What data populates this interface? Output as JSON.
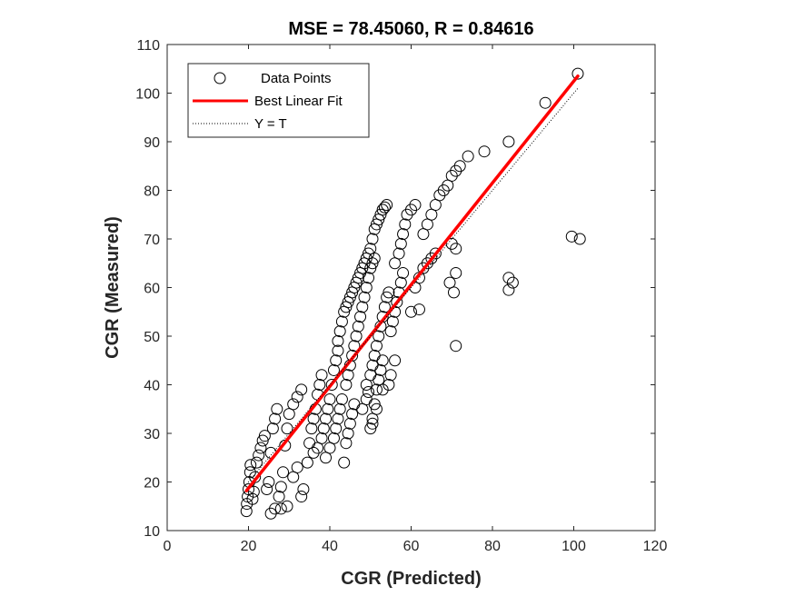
{
  "chart_data": {
    "type": "scatter",
    "title": "MSE = 78.45060, R = 0.84616",
    "xlabel": "CGR (Predicted)",
    "ylabel": "CGR (Measured)",
    "xlim": [
      0,
      120
    ],
    "ylim": [
      10,
      110
    ],
    "xticks": [
      0,
      20,
      40,
      60,
      80,
      100,
      120
    ],
    "yticks": [
      10,
      20,
      30,
      40,
      50,
      60,
      70,
      80,
      90,
      100,
      110
    ],
    "grid": false,
    "legend_position": "top-left",
    "colors": {
      "points": "#000000",
      "fit": "#ff0000",
      "identity": "#000000",
      "frame": "#262626"
    },
    "series": [
      {
        "name": "Data Points",
        "kind": "scatter",
        "marker": "open-circle",
        "points": [
          [
            19.5,
            14
          ],
          [
            19.6,
            15.5
          ],
          [
            19.8,
            17
          ],
          [
            20,
            18.5
          ],
          [
            20.2,
            20
          ],
          [
            20.4,
            22
          ],
          [
            20.5,
            23.5
          ],
          [
            21,
            16.5
          ],
          [
            21.3,
            18
          ],
          [
            21.6,
            21
          ],
          [
            22,
            24
          ],
          [
            22.5,
            25.5
          ],
          [
            23,
            27
          ],
          [
            23.5,
            28.5
          ],
          [
            24,
            29.5
          ],
          [
            24.5,
            18.5
          ],
          [
            25,
            20
          ],
          [
            25.5,
            26
          ],
          [
            26,
            31
          ],
          [
            26.5,
            33
          ],
          [
            27,
            35
          ],
          [
            25.5,
            13.5
          ],
          [
            26.5,
            14.5
          ],
          [
            27.5,
            17
          ],
          [
            28,
            19
          ],
          [
            28.5,
            22
          ],
          [
            29,
            27.5
          ],
          [
            29.5,
            31
          ],
          [
            30,
            34
          ],
          [
            31,
            36
          ],
          [
            32,
            37.5
          ],
          [
            33,
            39
          ],
          [
            28,
            14.5
          ],
          [
            29.5,
            15
          ],
          [
            31,
            21
          ],
          [
            32,
            23
          ],
          [
            33,
            17
          ],
          [
            33.5,
            18.5
          ],
          [
            34.5,
            24
          ],
          [
            35,
            28
          ],
          [
            35.5,
            31
          ],
          [
            36,
            33
          ],
          [
            36.5,
            35
          ],
          [
            37,
            38
          ],
          [
            37.5,
            40
          ],
          [
            38,
            42
          ],
          [
            36,
            26
          ],
          [
            37,
            27
          ],
          [
            38,
            29
          ],
          [
            38.5,
            31
          ],
          [
            39,
            33
          ],
          [
            39.5,
            35
          ],
          [
            40,
            37
          ],
          [
            40.5,
            40
          ],
          [
            41,
            43
          ],
          [
            41.5,
            45
          ],
          [
            42,
            47
          ],
          [
            39,
            25
          ],
          [
            40,
            27
          ],
          [
            41,
            29
          ],
          [
            41.5,
            31
          ],
          [
            42,
            33
          ],
          [
            42.5,
            35
          ],
          [
            43,
            37
          ],
          [
            43.5,
            24
          ],
          [
            44,
            28
          ],
          [
            44.5,
            30
          ],
          [
            45,
            32
          ],
          [
            45.5,
            34
          ],
          [
            46,
            36
          ],
          [
            42,
            49
          ],
          [
            42.5,
            51
          ],
          [
            43,
            53
          ],
          [
            43.5,
            55
          ],
          [
            44,
            56
          ],
          [
            44.5,
            57
          ],
          [
            45,
            58
          ],
          [
            45.5,
            59
          ],
          [
            46,
            60
          ],
          [
            46.5,
            61
          ],
          [
            47,
            62
          ],
          [
            47.5,
            63
          ],
          [
            48,
            64
          ],
          [
            48.5,
            65
          ],
          [
            49,
            66
          ],
          [
            49.5,
            67
          ],
          [
            50,
            68
          ],
          [
            50.5,
            70
          ],
          [
            51,
            72
          ],
          [
            51.5,
            73
          ],
          [
            52,
            74
          ],
          [
            52.5,
            75
          ],
          [
            53,
            76
          ],
          [
            53.5,
            76.5
          ],
          [
            54,
            77
          ],
          [
            44,
            40
          ],
          [
            44.5,
            42
          ],
          [
            45,
            44
          ],
          [
            45.5,
            46
          ],
          [
            46,
            48
          ],
          [
            46.5,
            50
          ],
          [
            47,
            52
          ],
          [
            47.5,
            54
          ],
          [
            48,
            56
          ],
          [
            48.5,
            58
          ],
          [
            49,
            60
          ],
          [
            49.5,
            62
          ],
          [
            50,
            64
          ],
          [
            50.5,
            65
          ],
          [
            51,
            66
          ],
          [
            49,
            40
          ],
          [
            50,
            42
          ],
          [
            50.5,
            44
          ],
          [
            51,
            46
          ],
          [
            51.5,
            48
          ],
          [
            52,
            50
          ],
          [
            52.5,
            52
          ],
          [
            53,
            54
          ],
          [
            53.5,
            56
          ],
          [
            54,
            58
          ],
          [
            54.5,
            59
          ],
          [
            48,
            35
          ],
          [
            49,
            37
          ],
          [
            49.5,
            38.5
          ],
          [
            50,
            31
          ],
          [
            50.5,
            33
          ],
          [
            51,
            36
          ],
          [
            51.5,
            39
          ],
          [
            52,
            41
          ],
          [
            52.5,
            43
          ],
          [
            53,
            45
          ],
          [
            55,
            51
          ],
          [
            55.5,
            53
          ],
          [
            56,
            55
          ],
          [
            56.5,
            57
          ],
          [
            57,
            59
          ],
          [
            57.5,
            61
          ],
          [
            58,
            63
          ],
          [
            56,
            65
          ],
          [
            57,
            67
          ],
          [
            57.5,
            69
          ],
          [
            58,
            71
          ],
          [
            58.5,
            73
          ],
          [
            59,
            75
          ],
          [
            60,
            76
          ],
          [
            61,
            77
          ],
          [
            60,
            55
          ],
          [
            61,
            60
          ],
          [
            62,
            62
          ],
          [
            63,
            64
          ],
          [
            64,
            65
          ],
          [
            65,
            66
          ],
          [
            66,
            67
          ],
          [
            63,
            71
          ],
          [
            64,
            73
          ],
          [
            65,
            75
          ],
          [
            66,
            77
          ],
          [
            67,
            79
          ],
          [
            68,
            80
          ],
          [
            69,
            81
          ],
          [
            70,
            83
          ],
          [
            71,
            84
          ],
          [
            72,
            85
          ],
          [
            74,
            87
          ],
          [
            78,
            88
          ],
          [
            84,
            90
          ],
          [
            93,
            98
          ],
          [
            101,
            104
          ],
          [
            69.5,
            61
          ],
          [
            70.5,
            59
          ],
          [
            71,
            63
          ],
          [
            71,
            48
          ],
          [
            70,
            69
          ],
          [
            71,
            68
          ],
          [
            84,
            62
          ],
          [
            85,
            61
          ],
          [
            84,
            59.5
          ],
          [
            99.5,
            70.5
          ],
          [
            101.5,
            70
          ],
          [
            62,
            55.5
          ],
          [
            56,
            45
          ],
          [
            55,
            42
          ],
          [
            54.5,
            40
          ],
          [
            53,
            39
          ],
          [
            51.5,
            35
          ],
          [
            50.5,
            32
          ]
        ]
      },
      {
        "name": "Best Linear Fit",
        "kind": "line",
        "x": [
          19.5,
          101
        ],
        "y": [
          18.2,
          103.5
        ]
      },
      {
        "name": "Y = T",
        "kind": "dotted-line",
        "x": [
          19.5,
          101
        ],
        "y": [
          19.5,
          101
        ]
      }
    ]
  }
}
